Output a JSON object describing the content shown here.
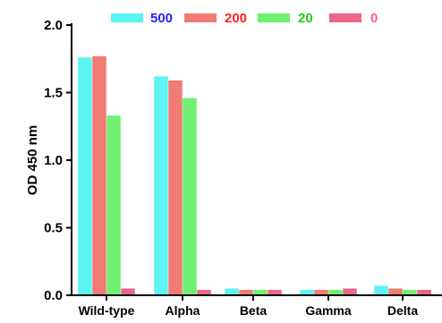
{
  "chart_data": {
    "type": "bar",
    "title": "",
    "xlabel": "",
    "ylabel": "OD 450 nm",
    "ylim": [
      0,
      2.0
    ],
    "yticks": [
      "0.0",
      "0.5",
      "1.0",
      "1.5",
      "2.0"
    ],
    "categories": [
      "Wild-type",
      "Alpha",
      "Beta",
      "Gamma",
      "Delta"
    ],
    "legend_position": "top",
    "grid": false,
    "series": [
      {
        "name": "500",
        "color": "#5cf3f3",
        "label_color": "#2222ff",
        "values": [
          1.76,
          1.62,
          0.05,
          0.04,
          0.07
        ]
      },
      {
        "name": "200",
        "color": "#f07c74",
        "label_color": "#ff2020",
        "values": [
          1.77,
          1.59,
          0.04,
          0.04,
          0.05
        ]
      },
      {
        "name": "20",
        "color": "#6ff070",
        "label_color": "#20cc20",
        "values": [
          1.33,
          1.46,
          0.04,
          0.04,
          0.04
        ]
      },
      {
        "name": "0",
        "color": "#ec6688",
        "label_color": "#ff5599",
        "values": [
          0.05,
          0.04,
          0.04,
          0.05,
          0.04
        ]
      }
    ]
  }
}
